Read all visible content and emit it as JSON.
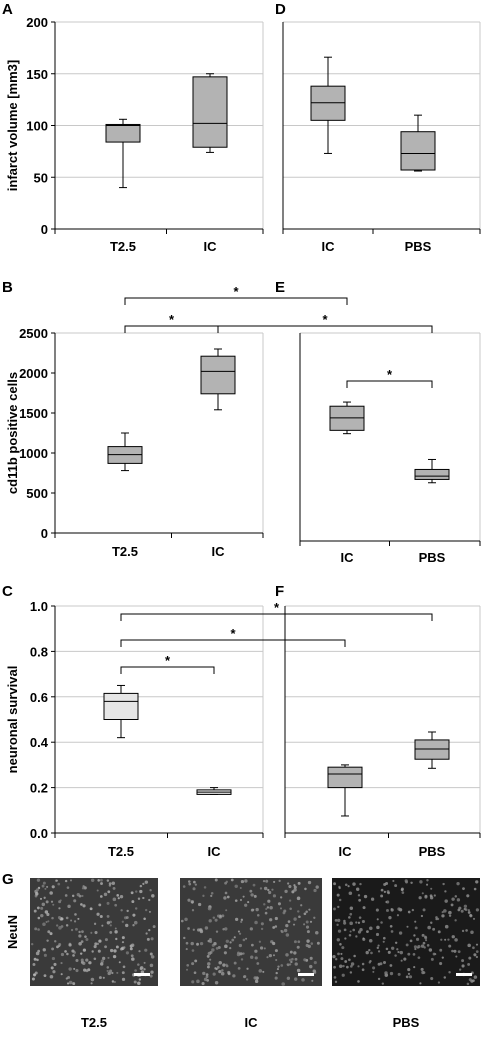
{
  "chart_data": [
    {
      "type": "box",
      "panel": "A",
      "ylabel": "infarct volume [mm3]",
      "categories": [
        "T2.5",
        "IC"
      ],
      "color": "#b3b3b3",
      "boxes": [
        {
          "min": 40,
          "q1": 84,
          "median": 100,
          "q3": 101,
          "max": 106
        },
        {
          "min": 74,
          "q1": 79,
          "median": 102,
          "q3": 147,
          "max": 150
        }
      ],
      "ylim": [
        0,
        200
      ],
      "yticks": [
        0,
        50,
        100,
        150,
        200
      ],
      "grid": true
    },
    {
      "type": "box",
      "panel": "D",
      "categories": [
        "IC",
        "PBS"
      ],
      "color": "#b3b3b3",
      "boxes": [
        {
          "min": 73,
          "q1": 105,
          "median": 122,
          "q3": 138,
          "max": 166
        },
        {
          "min": 56,
          "q1": 57,
          "median": 73,
          "q3": 94,
          "max": 110
        }
      ],
      "ylim": [
        0,
        200
      ],
      "yticks": [
        0,
        50,
        100,
        150,
        200
      ],
      "ytick_labels": false,
      "grid": true
    },
    {
      "type": "box",
      "panel": "B",
      "ylabel": "cd11b positive cells",
      "categories": [
        "T2.5",
        "IC"
      ],
      "color": "#b3b3b3",
      "boxes": [
        {
          "min": 780,
          "q1": 870,
          "median": 980,
          "q3": 1080,
          "max": 1250
        },
        {
          "min": 1540,
          "q1": 1740,
          "median": 2020,
          "q3": 2210,
          "max": 2300
        }
      ],
      "ylim": [
        0,
        2500
      ],
      "yticks": [
        0,
        500,
        1000,
        1500,
        2000,
        2500
      ],
      "grid": false
    },
    {
      "type": "box",
      "panel": "E",
      "categories": [
        "IC",
        "PBS"
      ],
      "color": "#b3b3b3",
      "boxes": [
        {
          "min": 1290,
          "q1": 1330,
          "median": 1480,
          "q3": 1620,
          "max": 1670
        },
        {
          "min": 700,
          "q1": 740,
          "median": 780,
          "q3": 860,
          "max": 980
        }
      ],
      "ylim": [
        0,
        2500
      ],
      "yticks": [
        0,
        500,
        1000,
        1500,
        2000,
        2500
      ],
      "ytick_labels": false,
      "grid": false
    },
    {
      "type": "box",
      "panel": "C",
      "ylabel": "neuronal survival",
      "categories": [
        "T2.5",
        "IC"
      ],
      "color": "#e6e6e6",
      "boxes": [
        {
          "min": 0.42,
          "q1": 0.5,
          "median": 0.58,
          "q3": 0.615,
          "max": 0.65
        },
        {
          "min": 0.17,
          "q1": 0.17,
          "median": 0.18,
          "q3": 0.19,
          "max": 0.2
        }
      ],
      "ylim": [
        0,
        1
      ],
      "yticks": [
        {
          "value": 0,
          "label": "0.0"
        },
        0.2,
        0.4,
        0.6,
        0.8,
        {
          "value": 1,
          "label": "1.0"
        }
      ],
      "grid": true
    },
    {
      "type": "box",
      "panel": "F",
      "categories": [
        "IC",
        "PBS"
      ],
      "color": "#b3b3b3",
      "boxes": [
        {
          "min": 0.075,
          "q1": 0.2,
          "median": 0.26,
          "q3": 0.29,
          "max": 0.3
        },
        {
          "min": 0.285,
          "q1": 0.325,
          "median": 0.37,
          "q3": 0.41,
          "max": 0.445
        }
      ],
      "ylim": [
        0,
        1
      ],
      "yticks": [
        {
          "value": 0,
          "label": "0.0"
        },
        0.2,
        0.4,
        0.6,
        0.8,
        {
          "value": 1,
          "label": "1.0"
        }
      ],
      "ytick_labels": false,
      "grid": true
    }
  ],
  "significance": [
    {
      "label": "*",
      "from": [
        2,
        0
      ],
      "to": [
        3,
        0
      ]
    },
    {
      "label": "*",
      "from": [
        2,
        0
      ],
      "to": [
        2,
        1
      ]
    },
    {
      "label": "*",
      "from": [
        2,
        1
      ],
      "to": [
        3,
        1
      ]
    },
    {
      "label": "*",
      "from": [
        3,
        0
      ],
      "to": [
        3,
        1
      ]
    },
    {
      "label": "*",
      "from": [
        4,
        0
      ],
      "to": [
        5,
        1
      ]
    },
    {
      "label": "*",
      "from": [
        4,
        0
      ],
      "to": [
        5,
        0
      ]
    },
    {
      "label": "*",
      "from": [
        4,
        0
      ],
      "to": [
        4,
        1
      ]
    }
  ],
  "figure_g": {
    "panel": "G",
    "stain": "NeuN",
    "captions": [
      "T2.5",
      "IC",
      "PBS"
    ]
  }
}
